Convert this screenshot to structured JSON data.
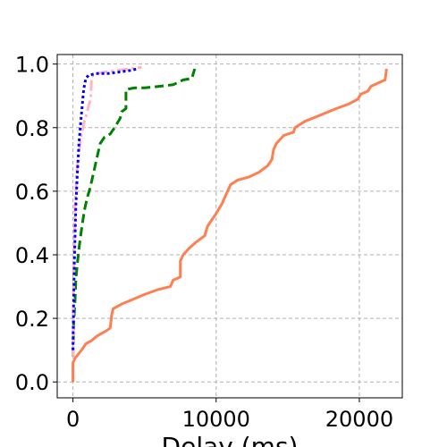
{
  "chart_data": {
    "type": "line",
    "title": "",
    "xlabel": "Delay (ms)",
    "ylabel": "",
    "xlim": [
      -1100,
      23000
    ],
    "ylim": [
      -0.05,
      1.03
    ],
    "xticks": [
      0,
      10000,
      20000
    ],
    "xtick_labels": [
      "0",
      "10000",
      "20000"
    ],
    "yticks": [
      0.0,
      0.2,
      0.4,
      0.6,
      0.8,
      1.0
    ],
    "ytick_labels": [
      "0.0",
      "0.2",
      "0.4",
      "0.6",
      "0.8",
      "1.0"
    ],
    "grid": true,
    "legend": "none",
    "series": [
      {
        "color": "#ff7f50",
        "style": "solid",
        "x": [
          0,
          0,
          150,
          600,
          900,
          1300,
          1700,
          2300,
          2600,
          2700,
          2800,
          3400,
          4200,
          5000,
          5900,
          6800,
          7000,
          7500,
          7500,
          7700,
          8100,
          8600,
          9200,
          9400,
          9700,
          10000,
          10400,
          10700,
          11000,
          11500,
          12300,
          13000,
          13600,
          13900,
          14000,
          14200,
          14500,
          14700,
          15000,
          15400,
          15500,
          16200,
          17300,
          18400,
          19300,
          19900,
          20100,
          20600,
          20800,
          21800,
          21900
        ],
        "y": [
          0.0,
          0.06,
          0.075,
          0.1,
          0.12,
          0.13,
          0.145,
          0.16,
          0.17,
          0.21,
          0.23,
          0.245,
          0.26,
          0.275,
          0.29,
          0.3,
          0.32,
          0.33,
          0.38,
          0.4,
          0.42,
          0.44,
          0.46,
          0.49,
          0.51,
          0.53,
          0.56,
          0.59,
          0.62,
          0.635,
          0.645,
          0.66,
          0.68,
          0.7,
          0.73,
          0.75,
          0.765,
          0.775,
          0.78,
          0.785,
          0.8,
          0.82,
          0.84,
          0.86,
          0.875,
          0.89,
          0.905,
          0.915,
          0.93,
          0.95,
          0.985
        ]
      },
      {
        "color": "#008000",
        "style": "dashed",
        "x": [
          0,
          40,
          100,
          150,
          200,
          300,
          450,
          600,
          800,
          1000,
          1200,
          1400,
          1700,
          1900,
          2200,
          2600,
          2900,
          3300,
          3400,
          3700,
          3700,
          4300,
          5000,
          6000,
          7000,
          7700,
          8300,
          8500
        ],
        "y": [
          0.08,
          0.18,
          0.22,
          0.26,
          0.32,
          0.37,
          0.43,
          0.48,
          0.54,
          0.58,
          0.61,
          0.65,
          0.71,
          0.75,
          0.77,
          0.78,
          0.8,
          0.83,
          0.85,
          0.86,
          0.92,
          0.925,
          0.925,
          0.93,
          0.935,
          0.95,
          0.955,
          0.985
        ]
      },
      {
        "color": "#ffb6c1",
        "style": "dashdot",
        "x": [
          0,
          30,
          80,
          150,
          250,
          400,
          600,
          800,
          1000,
          1100,
          1250,
          1300,
          1600,
          2200,
          3000,
          4000,
          4800
        ],
        "y": [
          0.08,
          0.25,
          0.4,
          0.55,
          0.65,
          0.72,
          0.78,
          0.82,
          0.85,
          0.87,
          0.89,
          0.96,
          0.97,
          0.975,
          0.98,
          0.985,
          0.99
        ]
      },
      {
        "color": "#0000ff",
        "style": "dotted",
        "x": [
          0,
          50,
          100,
          200,
          300,
          420,
          550,
          650,
          750,
          900,
          1100,
          1600,
          2400,
          3200,
          4000,
          4500
        ],
        "y": [
          0.1,
          0.25,
          0.38,
          0.55,
          0.65,
          0.75,
          0.82,
          0.87,
          0.92,
          0.955,
          0.965,
          0.97,
          0.97,
          0.975,
          0.98,
          0.985
        ]
      }
    ]
  }
}
